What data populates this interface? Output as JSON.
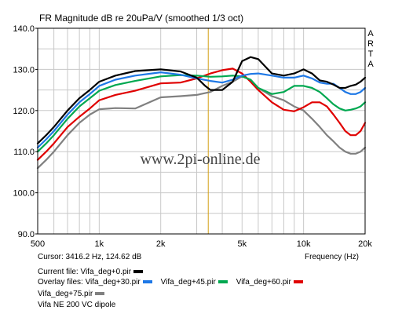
{
  "chart_data": {
    "type": "line",
    "title": "FR Magnitude dB re 20uPa/V (smoothed 1/3 oct)",
    "xlabel": "Frequency (Hz)",
    "ylabel": "",
    "x_scale": "log",
    "xlim": [
      500,
      20000
    ],
    "ylim": [
      90,
      140
    ],
    "y_ticks": [
      "140.0",
      "130.0",
      "120.0",
      "110.0",
      "100.0",
      "90.0"
    ],
    "x_ticks": [
      {
        "value": 500,
        "label": "500"
      },
      {
        "value": 1000,
        "label": "1k"
      },
      {
        "value": 2000,
        "label": "2k"
      },
      {
        "value": 5000,
        "label": "5k"
      },
      {
        "value": 10000,
        "label": "10k"
      },
      {
        "value": 20000,
        "label": "20k"
      }
    ],
    "grid": true,
    "watermark": "www.2pi-online.de",
    "arta_label": [
      "A",
      "R",
      "T",
      "A"
    ],
    "cursor": {
      "freq": 3416.2,
      "color": "#d4a017"
    },
    "series": [
      {
        "name": "Vifa_deg+75.pir",
        "color": "#808080",
        "x": [
          500,
          550,
          600,
          700,
          800,
          900,
          1000,
          1200,
          1500,
          2000,
          2500,
          3000,
          3500,
          4000,
          4500,
          5000,
          5500,
          6000,
          7000,
          8000,
          9000,
          10000,
          11000,
          12000,
          13000,
          14000,
          15000,
          16000,
          17000,
          18000,
          19000,
          20000
        ],
        "y": [
          106,
          108,
          110,
          114,
          117,
          119,
          120.3,
          120.6,
          120.5,
          123.2,
          123.5,
          123.8,
          124.5,
          126,
          127,
          128.3,
          127.5,
          125.5,
          123.5,
          122.5,
          121,
          120,
          118,
          116,
          114,
          112.5,
          111,
          110,
          109.5,
          109.5,
          110,
          111
        ]
      },
      {
        "name": "Vifa_deg+60.pir",
        "color": "#e00000",
        "x": [
          500,
          550,
          600,
          700,
          800,
          900,
          1000,
          1200,
          1500,
          2000,
          2500,
          3000,
          3500,
          4000,
          4500,
          5000,
          5500,
          6000,
          7000,
          8000,
          9000,
          10000,
          11000,
          12000,
          13000,
          14000,
          15000,
          16000,
          17000,
          18000,
          19000,
          20000
        ],
        "y": [
          108,
          110,
          112,
          116,
          118.5,
          120.5,
          122.5,
          123.8,
          124.8,
          126.6,
          126.8,
          127.8,
          129,
          129.8,
          130.2,
          129,
          127,
          125,
          122,
          120.2,
          119.8,
          120.8,
          122,
          122,
          121,
          119,
          117,
          115,
          114,
          114,
          115,
          117
        ]
      },
      {
        "name": "Vifa_deg+45.pir",
        "color": "#00a850",
        "x": [
          500,
          550,
          600,
          700,
          800,
          900,
          1000,
          1200,
          1500,
          2000,
          2500,
          3000,
          3500,
          4000,
          4500,
          5000,
          5500,
          6000,
          7000,
          8000,
          9000,
          10000,
          11000,
          12000,
          13000,
          14000,
          15000,
          16000,
          17000,
          18000,
          19000,
          20000
        ],
        "y": [
          110,
          112,
          114,
          118,
          121,
          123,
          124.8,
          126.2,
          127.2,
          128.3,
          128.6,
          128.5,
          128.2,
          128.3,
          128.5,
          128.3,
          127.5,
          125.5,
          124,
          124.5,
          126,
          126,
          125.5,
          124.5,
          123,
          121.5,
          120.5,
          120,
          120.2,
          120.5,
          121,
          122
        ]
      },
      {
        "name": "Vifa_deg+30.pir",
        "color": "#1e78e6",
        "x": [
          500,
          550,
          600,
          700,
          800,
          900,
          1000,
          1200,
          1500,
          2000,
          2500,
          3000,
          3500,
          4000,
          4500,
          5000,
          5500,
          6000,
          7000,
          8000,
          9000,
          10000,
          11000,
          12000,
          13000,
          14000,
          15000,
          16000,
          17000,
          18000,
          19000,
          20000
        ],
        "y": [
          111,
          113,
          115,
          119,
          122,
          124,
          126,
          127.5,
          128.5,
          129.3,
          128.7,
          127.8,
          127.2,
          126.8,
          127.5,
          128.5,
          128.9,
          129,
          128.5,
          128,
          128,
          128.5,
          127.8,
          126.8,
          126.5,
          126.5,
          125.5,
          124.5,
          124,
          124,
          124.5,
          125.5
        ]
      },
      {
        "name": "Vifa_deg+0.pir",
        "color": "#000000",
        "x": [
          500,
          550,
          600,
          700,
          800,
          900,
          1000,
          1200,
          1500,
          2000,
          2500,
          3000,
          3300,
          3500,
          4000,
          4500,
          5000,
          5500,
          6000,
          7000,
          8000,
          9000,
          10000,
          11000,
          12000,
          13000,
          14000,
          15000,
          16000,
          17000,
          18000,
          19000,
          20000
        ],
        "y": [
          112,
          114,
          116,
          120,
          123,
          125,
          127,
          128.5,
          129.6,
          130,
          129.5,
          128,
          126,
          125,
          125,
          127,
          132,
          133,
          132.5,
          129,
          128.5,
          129,
          130,
          129,
          127.3,
          127,
          126.3,
          125.5,
          125.5,
          126,
          126.3,
          127,
          128
        ]
      }
    ]
  },
  "footer": {
    "cursor_text": "Cursor: 3416.2 Hz, 124.62 dB",
    "current_label": "Current file: Vifa_deg+0.pir",
    "overlay_prefix": "Overlay files: Vifa_deg+30.pir",
    "overlay_2": "Vifa_deg+45.pir",
    "overlay_3": "Vifa_deg+60.pir",
    "overlay_4": "Vifa_deg+75.pir",
    "description": "Vifa NE 200 VC dipole"
  }
}
